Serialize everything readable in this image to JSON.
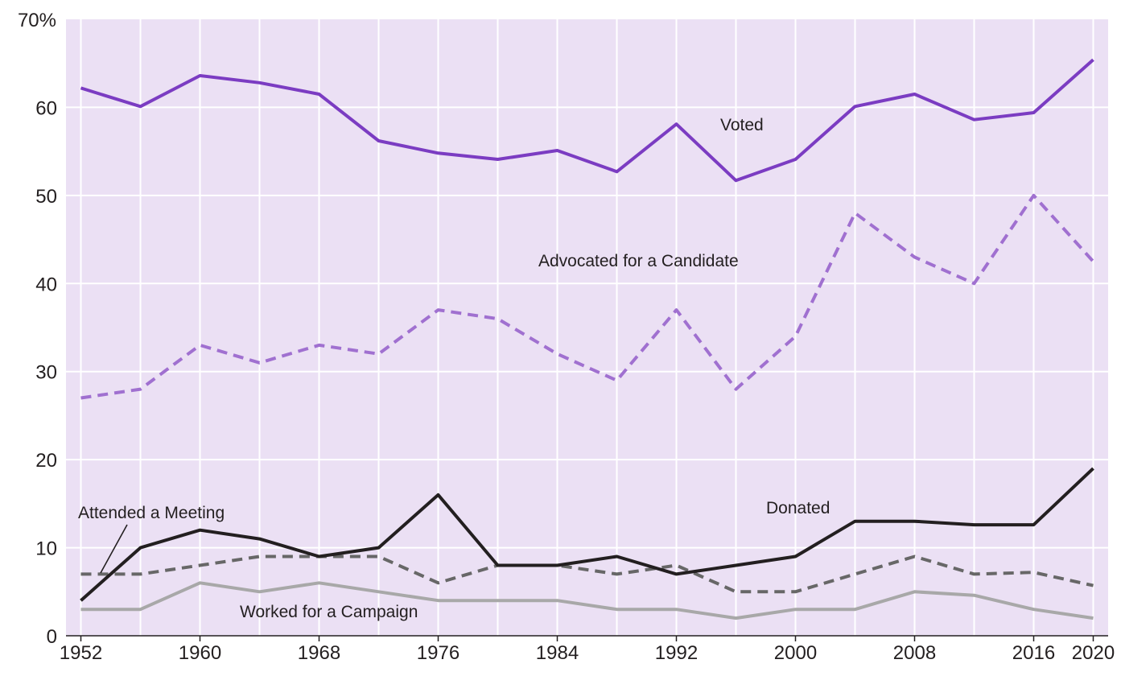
{
  "chart_data": {
    "type": "line",
    "title": "",
    "xlabel": "",
    "ylabel": "",
    "x": [
      1952,
      1956,
      1960,
      1964,
      1968,
      1972,
      1976,
      1980,
      1984,
      1988,
      1992,
      1996,
      2000,
      2004,
      2008,
      2012,
      2016,
      2020
    ],
    "xlim": [
      1951,
      2021
    ],
    "ylim": [
      0,
      70
    ],
    "x_ticks": [
      1952,
      1960,
      1968,
      1976,
      1984,
      1992,
      2000,
      2008,
      2016,
      2020
    ],
    "x_tick_labels": [
      "1952",
      "1960",
      "1968",
      "1976",
      "1984",
      "1992",
      "2000",
      "2008",
      "2016",
      "2020"
    ],
    "y_ticks": [
      0,
      10,
      20,
      30,
      40,
      50,
      60,
      70
    ],
    "y_tick_labels": [
      "0",
      "10",
      "20",
      "30",
      "40",
      "50",
      "60",
      "70%"
    ],
    "grid": true,
    "legend": "inline labels",
    "plot_background": "#ebe0f4",
    "grid_color": "#ffffff",
    "series": [
      {
        "name": "Voted",
        "color": "#7b3cc2",
        "style": "solid",
        "values": [
          62.2,
          60.1,
          63.6,
          62.8,
          61.5,
          56.2,
          54.8,
          54.1,
          55.1,
          52.7,
          58.1,
          51.7,
          54.1,
          60.1,
          61.5,
          58.6,
          59.4,
          65.4
        ]
      },
      {
        "name": "Advocated for a Candidate",
        "color": "#a070d0",
        "style": "dashed",
        "values": [
          27,
          28,
          33,
          31,
          33,
          32,
          37,
          36,
          32,
          29,
          37,
          28,
          34,
          48,
          43,
          40,
          50,
          42.5
        ]
      },
      {
        "name": "Donated",
        "color": "#231f20",
        "style": "solid",
        "values": [
          4,
          10,
          12,
          11,
          9,
          10,
          16,
          8,
          8,
          9,
          7,
          8,
          9,
          13,
          13,
          12.6,
          12.6,
          19
        ]
      },
      {
        "name": "Attended a Meeting",
        "color": "#676767",
        "style": "dashed",
        "values": [
          7,
          7,
          8,
          9,
          9,
          9,
          6,
          8,
          8,
          7,
          8,
          5,
          5,
          7,
          9,
          7,
          7.2,
          5.7
        ]
      },
      {
        "name": "Worked for a Campaign",
        "color": "#a8a8a8",
        "style": "solid",
        "values": [
          3,
          3,
          6,
          5,
          6,
          5,
          4,
          4,
          4,
          3,
          3,
          2,
          3,
          3,
          5,
          4.6,
          3,
          2
        ]
      }
    ]
  }
}
